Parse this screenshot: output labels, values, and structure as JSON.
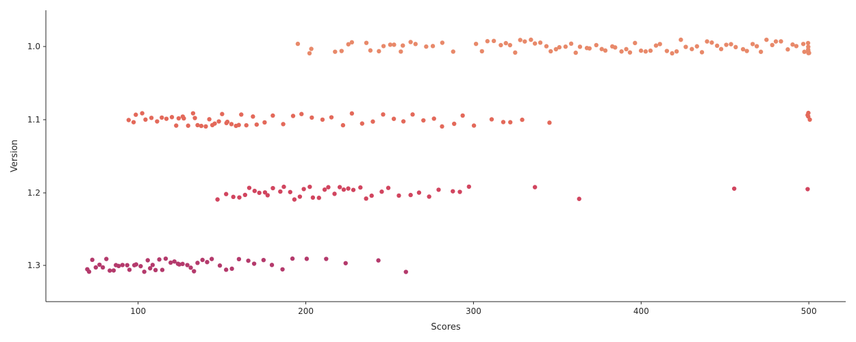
{
  "chart_data": {
    "type": "scatter",
    "title": "",
    "xlabel": "Scores",
    "ylabel": "Version",
    "xlim": [
      45,
      522
    ],
    "x_ticks": [
      100,
      200,
      300,
      400,
      500
    ],
    "x_tick_labels": [
      "100",
      "200",
      "300",
      "400",
      "500"
    ],
    "categories": [
      "1.0",
      "1.1",
      "1.2",
      "1.3"
    ],
    "grid": false,
    "legend": "none",
    "series": [
      {
        "category": "1.0",
        "color": "#e8896a",
        "values": [
          195,
          202,
          203,
          218,
          221,
          225,
          227,
          236,
          239,
          243,
          247,
          250,
          253,
          256,
          258,
          262,
          266,
          272,
          275,
          281,
          288,
          301,
          305,
          308,
          312,
          316,
          319,
          322,
          325,
          328,
          331,
          334,
          337,
          340,
          343,
          346,
          349,
          352,
          355,
          358,
          361,
          364,
          367,
          370,
          373,
          376,
          379,
          382,
          385,
          388,
          391,
          394,
          397,
          400,
          403,
          406,
          409,
          412,
          415,
          418,
          421,
          424,
          427,
          430,
          433,
          436,
          439,
          442,
          445,
          448,
          451,
          454,
          457,
          460,
          463,
          466,
          469,
          472,
          475,
          478,
          481,
          484,
          487,
          490,
          493,
          496,
          498,
          500,
          500,
          500,
          500,
          500,
          500
        ]
      },
      {
        "category": "1.1",
        "color": "#e3695a",
        "values": [
          94,
          97,
          99,
          102,
          105,
          108,
          111,
          114,
          117,
          120,
          122,
          124,
          126,
          128,
          130,
          132,
          134,
          136,
          138,
          140,
          142,
          144,
          146,
          148,
          150,
          152,
          154,
          156,
          158,
          160,
          162,
          165,
          168,
          171,
          175,
          180,
          186,
          192,
          198,
          204,
          210,
          216,
          222,
          228,
          234,
          240,
          246,
          252,
          258,
          264,
          270,
          276,
          282,
          288,
          294,
          300,
          311,
          317,
          322,
          329,
          345,
          500,
          500,
          500,
          500
        ]
      },
      {
        "category": "1.2",
        "color": "#d1455f",
        "values": [
          148,
          152,
          156,
          160,
          163,
          166,
          169,
          172,
          175,
          178,
          181,
          184,
          187,
          190,
          193,
          196,
          199,
          202,
          205,
          208,
          211,
          214,
          217,
          220,
          223,
          226,
          229,
          232,
          236,
          240,
          245,
          250,
          256,
          262,
          268,
          274,
          280,
          288,
          292,
          298,
          336,
          363,
          455,
          500
        ]
      },
      {
        "category": "1.3",
        "color": "#b43a6c",
        "values": [
          69,
          71,
          73,
          75,
          77,
          79,
          81,
          83,
          85,
          87,
          89,
          91,
          93,
          95,
          97,
          99,
          101,
          103,
          105,
          107,
          109,
          111,
          113,
          115,
          117,
          119,
          121,
          123,
          125,
          127,
          129,
          131,
          133,
          135,
          138,
          141,
          144,
          148,
          152,
          156,
          160,
          165,
          170,
          175,
          180,
          186,
          192,
          200,
          212,
          224,
          244,
          260
        ]
      }
    ]
  }
}
